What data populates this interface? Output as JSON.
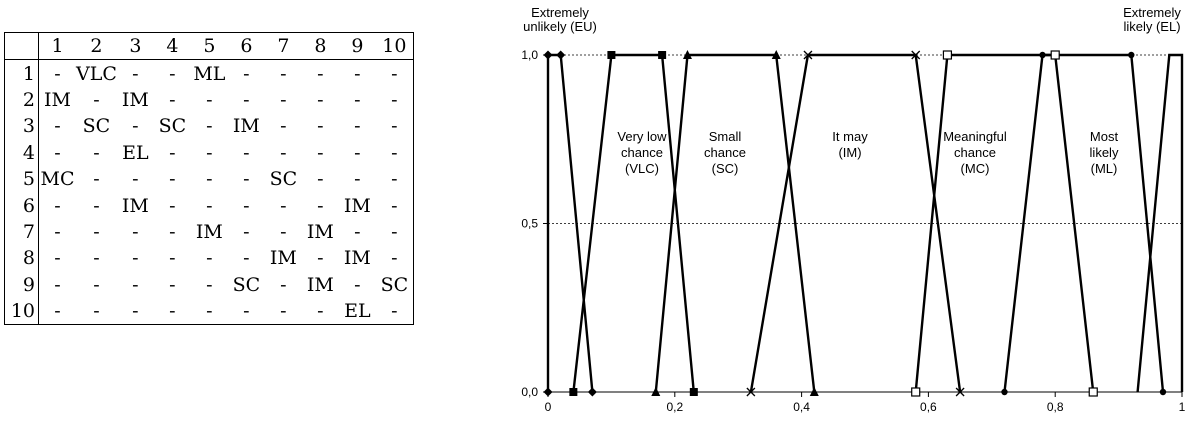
{
  "table": {
    "columns": [
      "1",
      "2",
      "3",
      "4",
      "5",
      "6",
      "7",
      "8",
      "9",
      "10"
    ],
    "rows": [
      {
        "label": "1",
        "cells": [
          "-",
          "VLC",
          "-",
          "-",
          "ML",
          "-",
          "-",
          "-",
          "-",
          "-"
        ]
      },
      {
        "label": "2",
        "cells": [
          "IM",
          "-",
          "IM",
          "-",
          "-",
          "-",
          "-",
          "-",
          "-",
          "-"
        ]
      },
      {
        "label": "3",
        "cells": [
          "-",
          "SC",
          "-",
          "SC",
          "-",
          "IM",
          "-",
          "-",
          "-",
          "-"
        ]
      },
      {
        "label": "4",
        "cells": [
          "-",
          "-",
          "EL",
          "-",
          "-",
          "-",
          "-",
          "-",
          "-",
          "-"
        ]
      },
      {
        "label": "5",
        "cells": [
          "MC",
          "-",
          "-",
          "-",
          "-",
          "-",
          "SC",
          "-",
          "-",
          "-"
        ]
      },
      {
        "label": "6",
        "cells": [
          "-",
          "-",
          "IM",
          "-",
          "-",
          "-",
          "-",
          "-",
          "IM",
          "-"
        ]
      },
      {
        "label": "7",
        "cells": [
          "-",
          "-",
          "-",
          "-",
          "IM",
          "-",
          "-",
          "IM",
          "-",
          "-"
        ]
      },
      {
        "label": "8",
        "cells": [
          "-",
          "-",
          "-",
          "-",
          "-",
          "-",
          "IM",
          "-",
          "IM",
          "-"
        ]
      },
      {
        "label": "9",
        "cells": [
          "-",
          "-",
          "-",
          "-",
          "-",
          "SC",
          "-",
          "IM",
          "-",
          "SC"
        ]
      },
      {
        "label": "10",
        "cells": [
          "-",
          "-",
          "-",
          "-",
          "-",
          "-",
          "-",
          "-",
          "EL",
          "-"
        ]
      }
    ]
  },
  "chart_data": {
    "type": "line",
    "xlim": [
      0,
      1
    ],
    "ylim": [
      0,
      1
    ],
    "x_ticks": [
      "0",
      "0,2",
      "0,4",
      "0,6",
      "0,8",
      "1"
    ],
    "x_tick_values": [
      0,
      0.2,
      0.4,
      0.6,
      0.8,
      1
    ],
    "y_ticks": [
      "0,0",
      "0,5",
      "1,0"
    ],
    "y_tick_values": [
      0,
      0.5,
      1
    ],
    "grid": "horizontal-dotted",
    "series": [
      {
        "key": "EU",
        "marker": "diamond-filled",
        "points": [
          [
            0,
            0
          ],
          [
            0,
            1
          ],
          [
            0.02,
            1
          ],
          [
            0.07,
            0
          ]
        ]
      },
      {
        "key": "VLC",
        "marker": "square-filled",
        "points": [
          [
            0.04,
            0
          ],
          [
            0.1,
            1
          ],
          [
            0.18,
            1
          ],
          [
            0.23,
            0
          ]
        ]
      },
      {
        "key": "SC",
        "marker": "triangle-filled",
        "points": [
          [
            0.17,
            0
          ],
          [
            0.22,
            1
          ],
          [
            0.36,
            1
          ],
          [
            0.42,
            0
          ]
        ]
      },
      {
        "key": "IM",
        "marker": "cross",
        "points": [
          [
            0.32,
            0
          ],
          [
            0.41,
            1
          ],
          [
            0.58,
            1
          ],
          [
            0.65,
            0
          ]
        ]
      },
      {
        "key": "MC",
        "marker": "square-open",
        "points": [
          [
            0.58,
            0
          ],
          [
            0.63,
            1
          ],
          [
            0.8,
            1
          ],
          [
            0.86,
            0
          ]
        ]
      },
      {
        "key": "ML",
        "marker": "circle-filled",
        "points": [
          [
            0.72,
            0
          ],
          [
            0.78,
            1
          ],
          [
            0.92,
            1
          ],
          [
            0.97,
            0
          ]
        ]
      },
      {
        "key": "EL",
        "marker": "none",
        "points": [
          [
            0.93,
            0
          ],
          [
            0.98,
            1
          ],
          [
            1,
            1
          ],
          [
            1,
            0
          ]
        ]
      }
    ],
    "annotations": [
      {
        "key": "EU",
        "lines": [
          "Extremely",
          "unlikely (EU)"
        ]
      },
      {
        "key": "EL",
        "lines": [
          "Extremely",
          "likely (EL)"
        ]
      },
      {
        "key": "VLC",
        "lines": [
          "Very low",
          "chance",
          "(VLC)"
        ]
      },
      {
        "key": "SC",
        "lines": [
          "Small",
          "chance",
          "(SC)"
        ]
      },
      {
        "key": "IM",
        "lines": [
          "It may",
          "(IM)"
        ]
      },
      {
        "key": "MC",
        "lines": [
          "Meaningful",
          "chance",
          "(MC)"
        ]
      },
      {
        "key": "ML",
        "lines": [
          "Most",
          "likely",
          "(ML)"
        ]
      }
    ]
  }
}
